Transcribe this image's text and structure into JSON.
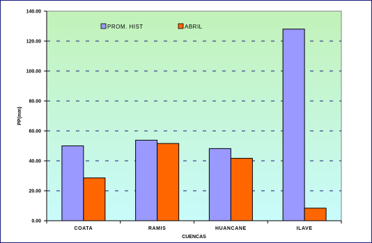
{
  "chart_data": {
    "type": "bar",
    "categories": [
      "COATA",
      "RAMIS",
      "HUANCANE",
      "ILAVE"
    ],
    "series": [
      {
        "name": "PROM. HIST",
        "values": [
          50.0,
          53.8,
          48.2,
          128.0
        ],
        "color": "#9999ff"
      },
      {
        "name": "ABRIL",
        "values": [
          28.6,
          51.6,
          41.7,
          8.4
        ],
        "color": "#ff6600"
      }
    ],
    "xlabel": "CUENCAS",
    "ylabel": "PP(mm)",
    "ylim": [
      0,
      140
    ],
    "yticks": [
      "0.00",
      "20.00",
      "40.00",
      "60.00",
      "80.00",
      "100.00",
      "120.00",
      "140.00"
    ],
    "grid": "dashed horizontal",
    "legend_position": "top-left",
    "plot_background": {
      "top": "#c2f2b8",
      "bottom": "#c9fbfb"
    },
    "border_color": "#1a1a7a"
  }
}
